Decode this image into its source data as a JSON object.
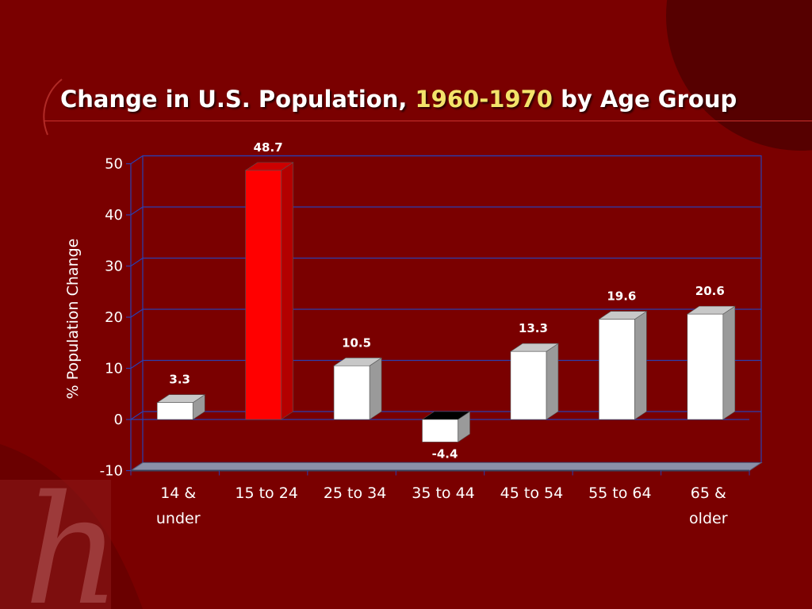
{
  "slide": {
    "title_part1": "Change in U.S. Population, ",
    "title_highlight": "1960-1970",
    "title_part2": " by Age Group",
    "highlight_color": "#f3e36a",
    "background_color": "#7a0000",
    "logo_letter": "h"
  },
  "chart_data": {
    "type": "bar",
    "categories": [
      [
        "14 &",
        "under"
      ],
      [
        "15 to 24"
      ],
      [
        "25 to 34"
      ],
      [
        "35 to 44"
      ],
      [
        "45 to 54"
      ],
      [
        "55 to 64"
      ],
      [
        "65 &",
        "older"
      ]
    ],
    "values": [
      3.3,
      48.7,
      10.5,
      -4.4,
      13.3,
      19.6,
      20.6
    ],
    "data_labels": [
      "3.3",
      "48.7",
      "10.5",
      "-4.4",
      "13.3",
      "19.6",
      "20.6"
    ],
    "bar_colors": [
      "#ffffff",
      "#ff0000",
      "#ffffff",
      "#ffffff",
      "#ffffff",
      "#ffffff",
      "#ffffff"
    ],
    "title": "Change in U.S. Population, 1960-1970 by Age Group",
    "xlabel": "",
    "ylabel": "% Population Change",
    "ylim": [
      -10,
      50
    ],
    "yticks": [
      "50",
      "40",
      "30",
      "20",
      "10",
      "0",
      "-10"
    ],
    "ytick_values": [
      50,
      40,
      30,
      20,
      10,
      0,
      -10
    ],
    "grid": true,
    "style": "3d"
  }
}
